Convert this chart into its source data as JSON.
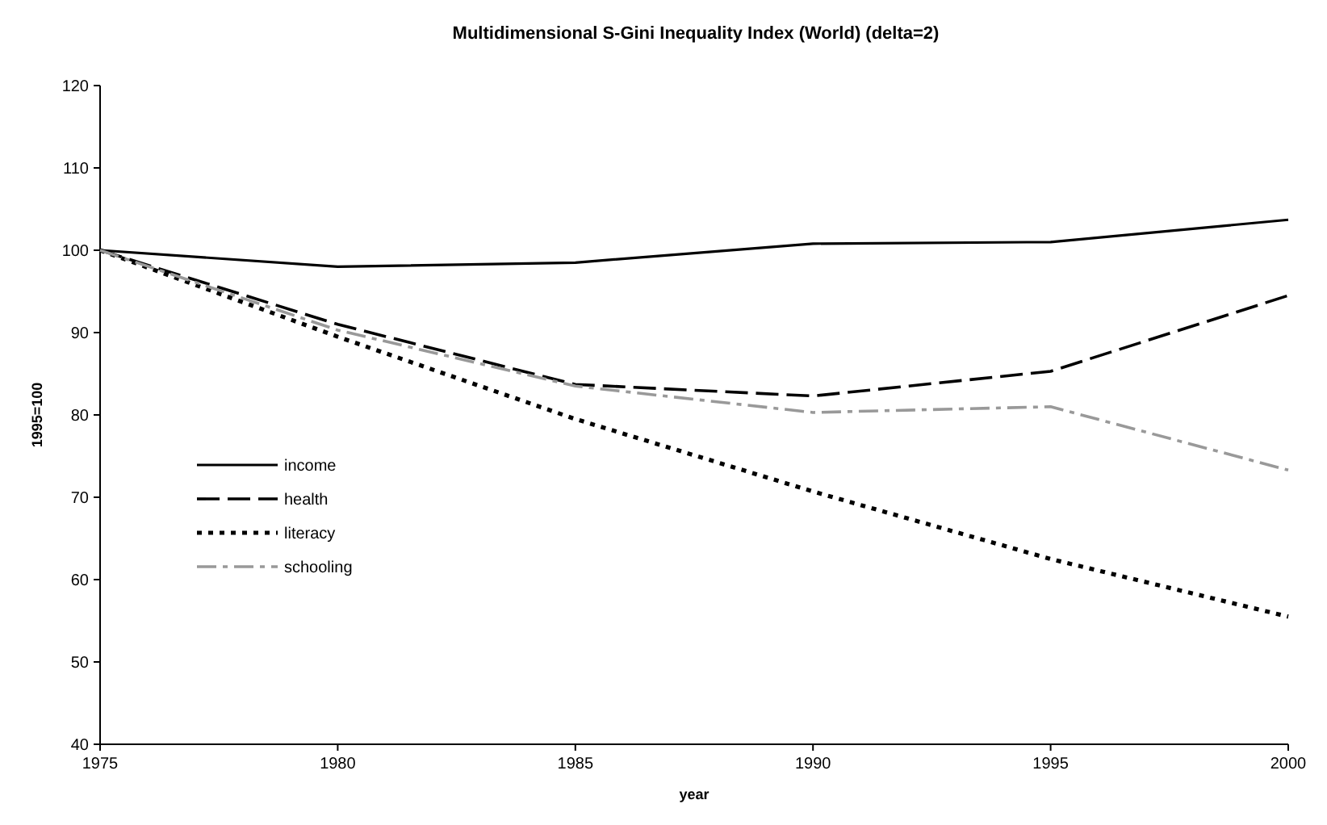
{
  "chart_data": {
    "type": "line",
    "title": "Multidimensional S-Gini Inequality Index (World) (delta=2)",
    "xlabel": "year",
    "ylabel": "1995=100",
    "x": [
      1975,
      1980,
      1985,
      1990,
      1995,
      2000
    ],
    "xlim": [
      1975,
      2000
    ],
    "xticks": [
      1975,
      1980,
      1985,
      1990,
      1995,
      2000
    ],
    "ylim": [
      40,
      120
    ],
    "yticks": [
      40,
      50,
      60,
      70,
      80,
      90,
      100,
      110,
      120
    ],
    "grid": false,
    "legend": "left",
    "marker": "none",
    "series": [
      {
        "name": "income",
        "color": "#000000",
        "line_style": "solid",
        "values": [
          100,
          98.0,
          98.5,
          100.8,
          101.0,
          103.7
        ]
      },
      {
        "name": "health",
        "color": "#000000",
        "line_style": "dashed",
        "values": [
          100,
          91.0,
          83.7,
          82.3,
          85.3,
          94.5
        ]
      },
      {
        "name": "literacy",
        "color": "#000000",
        "line_style": "dotted",
        "values": [
          100,
          89.5,
          79.5,
          70.7,
          62.5,
          55.5
        ]
      },
      {
        "name": "schooling",
        "color": "#999999",
        "line_style": "dashdot",
        "values": [
          100,
          90.3,
          83.5,
          80.3,
          81.0,
          73.3
        ]
      }
    ]
  }
}
